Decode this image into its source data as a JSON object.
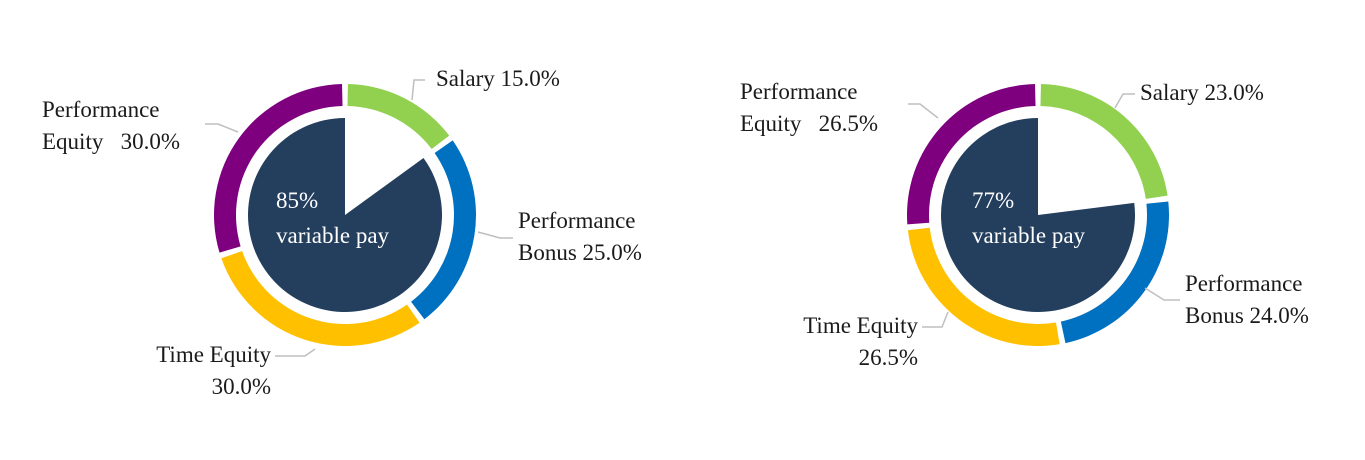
{
  "colors": {
    "Salary": "#92d050",
    "Performance Bonus": "#0070c0",
    "Time Equity": "#ffc000",
    "Performance Equity": "#7f007f",
    "variable_pay": "#243f5e",
    "leader": "#bfbfbf"
  },
  "chart_data": [
    {
      "type": "pie",
      "categories": [
        "Salary",
        "Performance Bonus",
        "Time Equity",
        "Performance Equity"
      ],
      "values": [
        15.0,
        25.0,
        30.0,
        30.0
      ],
      "labels": [
        {
          "lines": [
            "Salary 15.0%"
          ]
        },
        {
          "lines": [
            "Performance",
            "Bonus 25.0%"
          ]
        },
        {
          "lines": [
            "Time Equity",
            "30.0%"
          ]
        },
        {
          "lines": [
            "Performance",
            "Equity   30.0%"
          ]
        }
      ],
      "inner_value": 85,
      "inner_text": [
        "85%",
        "variable pay"
      ]
    },
    {
      "type": "pie",
      "categories": [
        "Salary",
        "Performance Bonus",
        "Time Equity",
        "Performance Equity"
      ],
      "values": [
        23.0,
        24.0,
        26.5,
        26.5
      ],
      "labels": [
        {
          "lines": [
            "Salary 23.0%"
          ]
        },
        {
          "lines": [
            "Performance",
            "Bonus 24.0%"
          ]
        },
        {
          "lines": [
            "Time Equity",
            "26.5%"
          ]
        },
        {
          "lines": [
            "Performance",
            "Equity   26.5%"
          ]
        }
      ],
      "inner_value": 77,
      "inner_text": [
        "77%",
        "variable pay"
      ]
    }
  ]
}
